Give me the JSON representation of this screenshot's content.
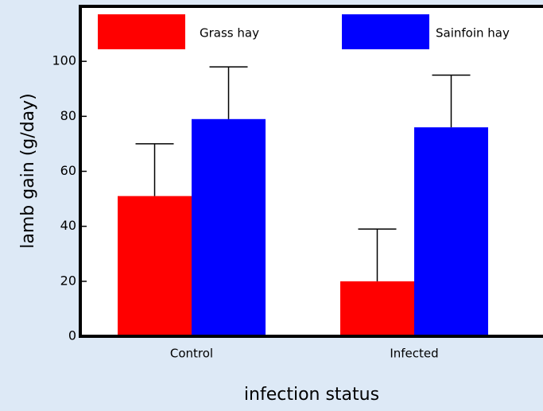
{
  "chart_data": {
    "type": "bar",
    "xlabel": "infection status",
    "ylabel": "lamb gain (g/day)",
    "categories": [
      "Control",
      "Infected"
    ],
    "series": [
      {
        "name": "Grass hay",
        "color": "#ff0000",
        "values": [
          51,
          20
        ],
        "errors": [
          19,
          19
        ]
      },
      {
        "name": "Sainfoin hay",
        "color": "#0000ff",
        "values": [
          79,
          76
        ],
        "errors": [
          19,
          19
        ]
      }
    ],
    "ylim": [
      0,
      120
    ],
    "yticks": [
      0,
      20,
      40,
      60,
      80,
      100
    ],
    "legend": "top"
  }
}
